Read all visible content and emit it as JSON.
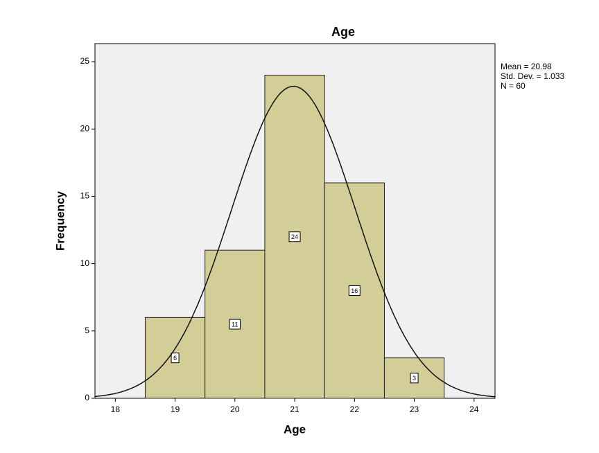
{
  "chart_data": {
    "type": "histogram",
    "title": "Age",
    "x_label": "Age",
    "y_label": "Frequency",
    "bins": [
      18.5,
      19.5,
      20.5,
      21.5,
      22.5,
      23.5
    ],
    "values": [
      6,
      11,
      24,
      16,
      3
    ],
    "color": "#d3ce98",
    "xlim": [
      17.66,
      24.35
    ],
    "xticks": [
      18,
      19,
      20,
      21,
      22,
      23,
      24
    ],
    "ylim": [
      0,
      26.34
    ],
    "yticks": [
      0,
      5,
      10,
      15,
      20,
      25
    ],
    "normal_curve": {
      "mean": 20.98,
      "sd": 1.033,
      "n": 60
    },
    "annotations": [
      "Mean = 20.98",
      "Std. Dev. = 1.033",
      "N = 60"
    ]
  }
}
